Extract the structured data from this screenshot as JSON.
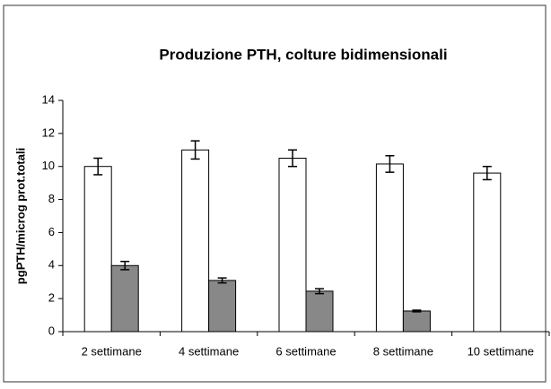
{
  "chart_data": {
    "type": "bar",
    "title": "Produzione PTH, colture bidimensionali",
    "y_label": "pgPTH/microg prot.totali",
    "categories": [
      "2 settimane",
      "4 settimane",
      "6 settimane",
      "8 settimane",
      "10 settimane"
    ],
    "series": [
      {
        "color": "#ffffff",
        "values": [
          10,
          11,
          10.5,
          10.15,
          9.6
        ],
        "errors": [
          0.5,
          0.55,
          0.5,
          0.5,
          0.4
        ]
      },
      {
        "color": "#888888",
        "values": [
          4,
          3.1,
          2.45,
          1.25,
          null
        ],
        "errors": [
          0.25,
          0.15,
          0.15,
          0.05,
          null
        ]
      }
    ],
    "ylim": [
      0,
      14
    ],
    "yticks": [
      0,
      2,
      4,
      6,
      8,
      10,
      12,
      14
    ],
    "grid": false
  }
}
